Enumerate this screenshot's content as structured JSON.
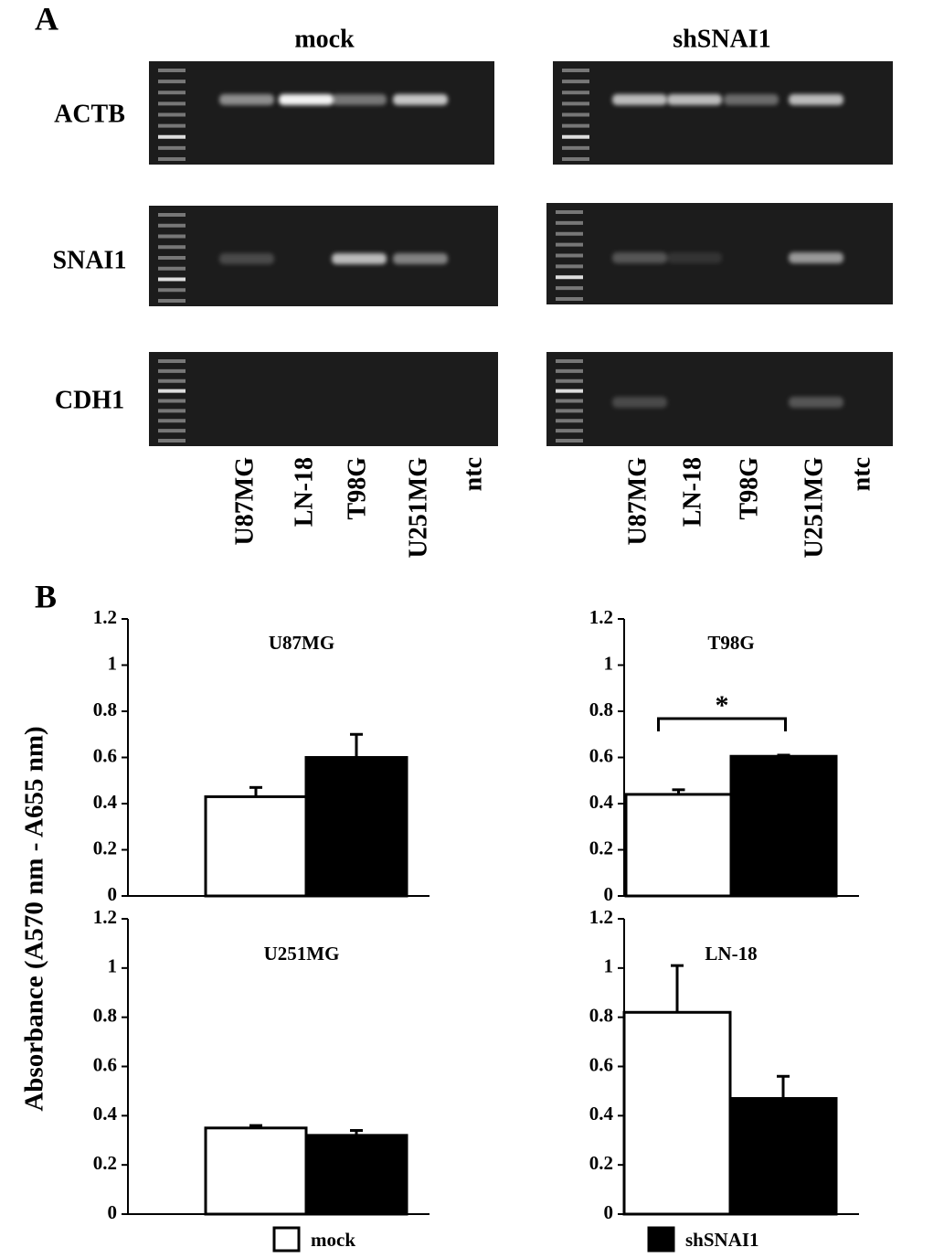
{
  "panel_a": {
    "label": "A",
    "groups": [
      "mock",
      "shSNAI1"
    ],
    "genes": [
      "ACTB",
      "SNAI1",
      "CDH1"
    ],
    "lanes": [
      "U87MG",
      "LN-18",
      "T98G",
      "U251MG",
      "ntc"
    ]
  },
  "panel_b": {
    "label": "B",
    "y_label": "Absorbance (A570 nm - A655 nm)"
  },
  "legend": {
    "names": [
      "mock",
      "shSNAI1"
    ],
    "colors": [
      "#ffffff",
      "#000000"
    ]
  },
  "chart_data": [
    {
      "type": "bar",
      "title": "U87MG",
      "values": [
        0.43,
        0.6
      ],
      "errors": [
        0.04,
        0.1
      ],
      "ylim": [
        0,
        1.2
      ],
      "yticks": [
        0,
        0.2,
        0.4,
        0.6,
        0.8,
        1,
        1.2
      ]
    },
    {
      "type": "bar",
      "title": "T98G",
      "values": [
        0.44,
        0.605
      ],
      "errors": [
        0.02,
        0.005
      ],
      "ylim": [
        0,
        1.2
      ],
      "yticks": [
        0,
        0.2,
        0.4,
        0.6,
        0.8,
        1,
        1.2
      ],
      "annotation": "*"
    },
    {
      "type": "bar",
      "title": "U251MG",
      "values": [
        0.35,
        0.32
      ],
      "errors": [
        0.01,
        0.02
      ],
      "ylim": [
        0,
        1.2
      ],
      "yticks": [
        0,
        0.2,
        0.4,
        0.6,
        0.8,
        1,
        1.2
      ]
    },
    {
      "type": "bar",
      "title": "LN-18",
      "values": [
        0.82,
        0.47
      ],
      "errors": [
        0.19,
        0.09
      ],
      "ylim": [
        0,
        1.2
      ],
      "yticks": [
        0,
        0.2,
        0.4,
        0.6,
        0.8,
        1,
        1.2
      ]
    }
  ]
}
